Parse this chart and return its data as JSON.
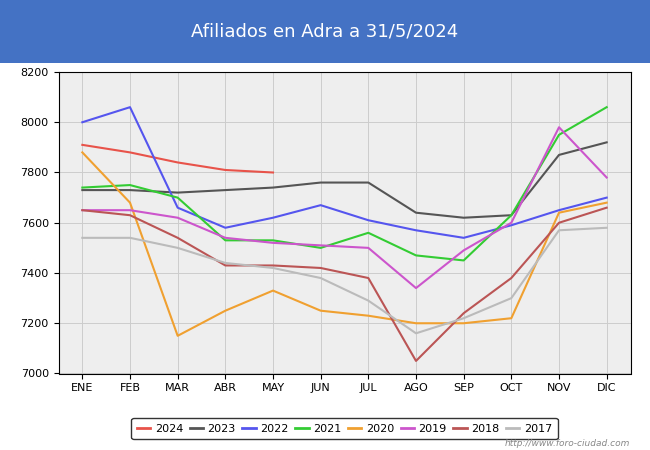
{
  "title": "Afiliados en Adra a 31/5/2024",
  "title_bg_color": "#4472c4",
  "title_text_color": "white",
  "ylim": [
    7000,
    8200
  ],
  "yticks": [
    7000,
    7200,
    7400,
    7600,
    7800,
    8000,
    8200
  ],
  "months": [
    "ENE",
    "FEB",
    "MAR",
    "ABR",
    "MAY",
    "JUN",
    "JUL",
    "AGO",
    "SEP",
    "OCT",
    "NOV",
    "DIC"
  ],
  "watermark": "http://www.foro-ciudad.com",
  "series": {
    "2024": {
      "color": "#e8534a",
      "data": [
        7910,
        7880,
        7840,
        7810,
        7800,
        null,
        null,
        null,
        null,
        null,
        null,
        null
      ]
    },
    "2023": {
      "color": "#555555",
      "data": [
        7730,
        7730,
        7720,
        7730,
        7740,
        7760,
        7760,
        7640,
        7620,
        7630,
        7870,
        7920
      ]
    },
    "2022": {
      "color": "#5555ee",
      "data": [
        8000,
        8060,
        7660,
        7580,
        7620,
        7670,
        7610,
        7570,
        7540,
        7590,
        7650,
        7700
      ]
    },
    "2021": {
      "color": "#33cc33",
      "data": [
        7740,
        7750,
        7700,
        7530,
        7530,
        7500,
        7560,
        7470,
        7450,
        7630,
        7950,
        8060
      ]
    },
    "2020": {
      "color": "#f0a030",
      "data": [
        7880,
        7680,
        7150,
        7250,
        7330,
        7250,
        7230,
        7200,
        7200,
        7220,
        7640,
        7680
      ]
    },
    "2019": {
      "color": "#cc55cc",
      "data": [
        7650,
        7650,
        7620,
        7540,
        7520,
        7510,
        7500,
        7340,
        7490,
        7600,
        7980,
        7780
      ]
    },
    "2018": {
      "color": "#bb5555",
      "data": [
        7650,
        7630,
        7540,
        7430,
        7430,
        7420,
        7380,
        7050,
        7240,
        7380,
        7600,
        7660
      ]
    },
    "2017": {
      "color": "#bbbbbb",
      "data": [
        7540,
        7540,
        7500,
        7440,
        7420,
        7380,
        7290,
        7160,
        7220,
        7300,
        7570,
        7580
      ]
    }
  },
  "legend_order": [
    "2024",
    "2023",
    "2022",
    "2021",
    "2020",
    "2019",
    "2018",
    "2017"
  ]
}
